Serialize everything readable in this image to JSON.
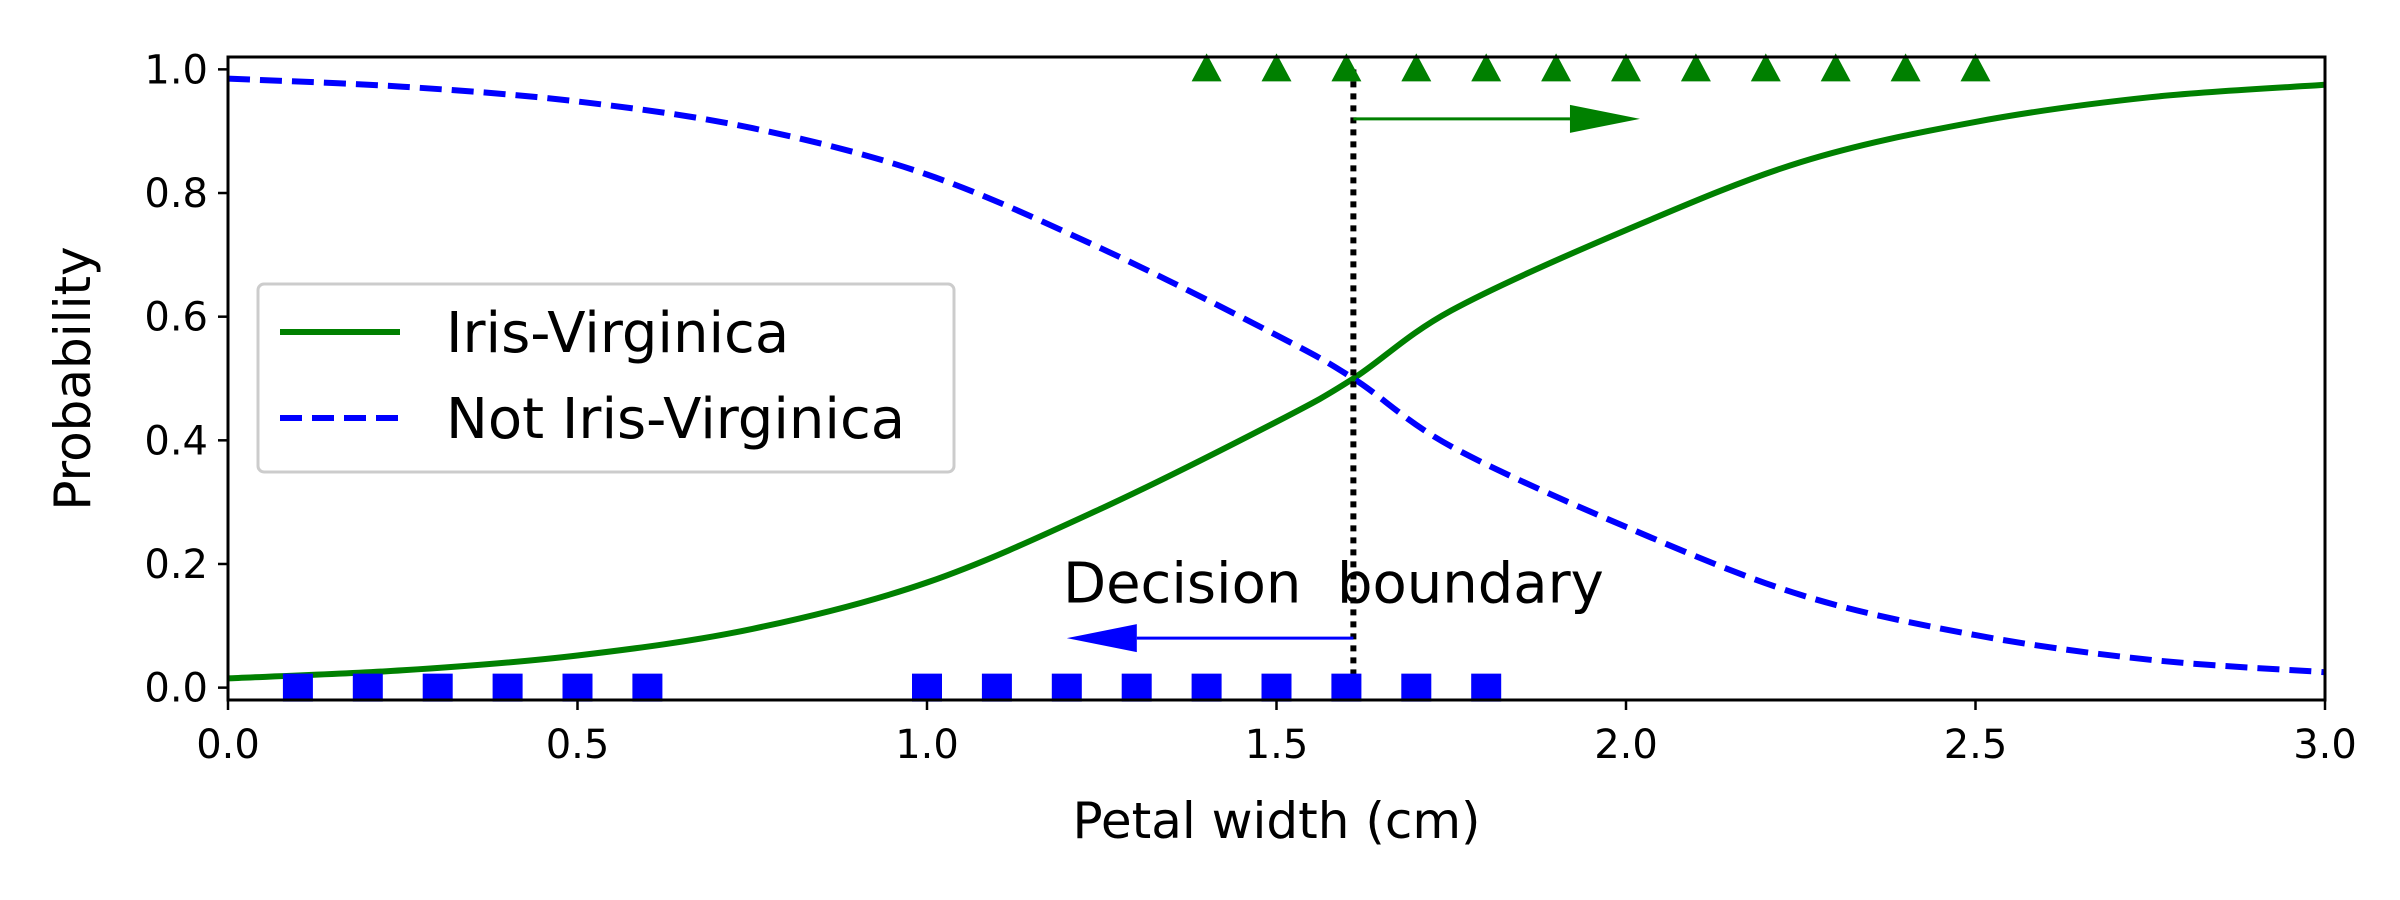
{
  "chart_data": {
    "type": "line",
    "xlabel": "Petal width (cm)",
    "ylabel": "Probability",
    "xlim": [
      0.0,
      3.0
    ],
    "ylim": [
      -0.02,
      1.02
    ],
    "xticks": [
      "0.0",
      "0.5",
      "1.0",
      "1.5",
      "2.0",
      "2.5",
      "3.0"
    ],
    "yticks": [
      "0.0",
      "0.2",
      "0.4",
      "0.6",
      "0.8",
      "1.0"
    ],
    "grid": false,
    "legend": {
      "placement": "center-left",
      "entries": [
        "Iris-Virginica",
        "Not Iris-Virginica"
      ]
    },
    "series": [
      {
        "name": "Iris-Virginica",
        "style": "solid",
        "color": "#008000",
        "x": [
          0.0,
          0.25,
          0.5,
          0.75,
          1.0,
          1.25,
          1.5,
          1.61,
          1.75,
          2.0,
          2.25,
          2.5,
          2.75,
          3.0
        ],
        "values": [
          0.015,
          0.028,
          0.052,
          0.095,
          0.17,
          0.29,
          0.43,
          0.5,
          0.61,
          0.74,
          0.85,
          0.915,
          0.955,
          0.975
        ]
      },
      {
        "name": "Not Iris-Virginica",
        "style": "dashed",
        "color": "#0000ff",
        "x": [
          0.0,
          0.25,
          0.5,
          0.75,
          1.0,
          1.25,
          1.5,
          1.61,
          1.75,
          2.0,
          2.25,
          2.5,
          2.75,
          3.0
        ],
        "values": [
          0.985,
          0.972,
          0.948,
          0.905,
          0.83,
          0.71,
          0.57,
          0.5,
          0.39,
          0.26,
          0.15,
          0.085,
          0.045,
          0.025
        ]
      }
    ],
    "points": [
      {
        "marker": "triangle",
        "color": "#008000",
        "y": 1.0,
        "x": [
          1.4,
          1.5,
          1.6,
          1.7,
          1.8,
          1.9,
          2.0,
          2.1,
          2.2,
          2.3,
          2.4,
          2.5
        ]
      },
      {
        "marker": "square",
        "color": "#0000ff",
        "y": 0.0,
        "x": [
          0.1,
          0.2,
          0.3,
          0.4,
          0.5,
          0.6,
          1.0,
          1.1,
          1.2,
          1.3,
          1.4,
          1.5,
          1.6,
          1.7,
          1.8
        ]
      }
    ],
    "decision_boundary": {
      "x": 1.61,
      "style": "dotted",
      "color": "#000000"
    },
    "annotations": [
      {
        "text": "Decision  boundary",
        "x": 1.61,
        "y": 0.17
      }
    ],
    "arrows": [
      {
        "color": "#008000",
        "from": [
          1.61,
          0.92
        ],
        "to": [
          2.02,
          0.92
        ]
      },
      {
        "color": "#0000ff",
        "from": [
          1.61,
          0.08
        ],
        "to": [
          1.2,
          0.08
        ]
      }
    ]
  }
}
